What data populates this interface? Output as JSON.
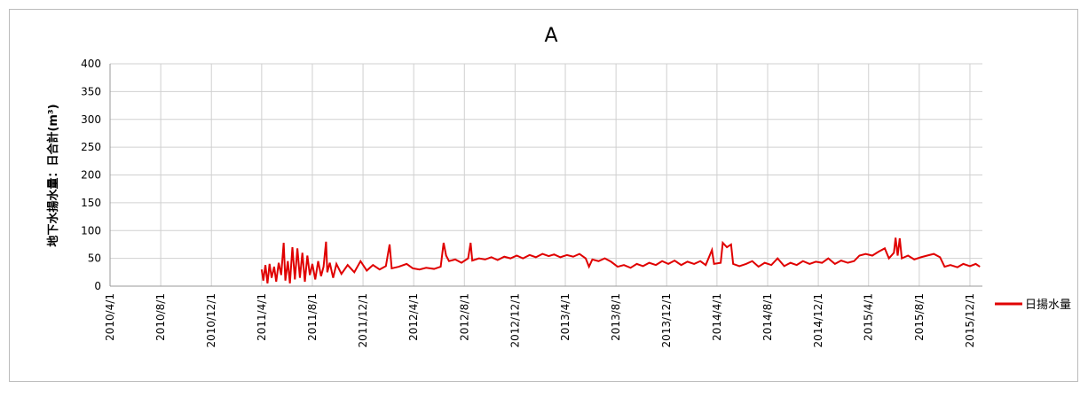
{
  "chart_data": {
    "type": "line",
    "title": "A",
    "y_label": "地下水揚水量：日合計(m³)",
    "xlim": [
      "2010/4/1",
      "2015/12/31"
    ],
    "xticks": [
      "2010/4/1",
      "2010/8/1",
      "2010/12/1",
      "2011/4/1",
      "2011/8/1",
      "2011/12/1",
      "2012/4/1",
      "2012/8/1",
      "2012/12/1",
      "2013/4/1",
      "2013/8/1",
      "2013/12/1",
      "2014/4/1",
      "2014/8/1",
      "2014/12/1",
      "2015/4/1",
      "2015/8/1",
      "2015/12/1"
    ],
    "ylim": [
      0,
      400
    ],
    "yticks": [
      0,
      50,
      100,
      150,
      200,
      250,
      300,
      350,
      400
    ],
    "grid": true,
    "legend": "right",
    "x": [
      "2011/4/1",
      "2011/4/5",
      "2011/4/10",
      "2011/4/15",
      "2011/4/20",
      "2011/4/25",
      "2011/5/1",
      "2011/5/6",
      "2011/5/12",
      "2011/5/18",
      "2011/5/24",
      "2011/5/28",
      "2011/6/3",
      "2011/6/8",
      "2011/6/14",
      "2011/6/20",
      "2011/6/26",
      "2011/7/2",
      "2011/7/8",
      "2011/7/14",
      "2011/7/20",
      "2011/7/26",
      "2011/8/1",
      "2011/8/8",
      "2011/8/15",
      "2011/8/22",
      "2011/8/28",
      "2011/9/3",
      "2011/9/6",
      "2011/9/12",
      "2011/9/20",
      "2011/9/28",
      "2011/10/10",
      "2011/10/25",
      "2011/11/10",
      "2011/11/25",
      "2011/12/10",
      "2011/12/25",
      "2012/1/10",
      "2012/1/25",
      "2012/2/3",
      "2012/2/8",
      "2012/2/25",
      "2012/3/15",
      "2012/3/30",
      "2012/4/15",
      "2012/5/1",
      "2012/5/20",
      "2012/6/5",
      "2012/6/12",
      "2012/6/18",
      "2012/6/25",
      "2012/7/10",
      "2012/7/25",
      "2012/8/10",
      "2012/8/16",
      "2012/8/20",
      "2012/9/5",
      "2012/9/20",
      "2012/10/5",
      "2012/10/20",
      "2012/11/5",
      "2012/11/20",
      "2012/12/5",
      "2012/12/20",
      "2013/1/5",
      "2013/1/20",
      "2013/2/5",
      "2013/2/20",
      "2013/3/5",
      "2013/3/20",
      "2013/4/5",
      "2013/4/20",
      "2013/5/5",
      "2013/5/20",
      "2013/5/28",
      "2013/6/5",
      "2013/6/20",
      "2013/7/5",
      "2013/7/20",
      "2013/8/5",
      "2013/8/20",
      "2013/9/5",
      "2013/9/20",
      "2013/10/5",
      "2013/10/20",
      "2013/11/5",
      "2013/11/20",
      "2013/12/5",
      "2013/12/20",
      "2014/1/5",
      "2014/1/20",
      "2014/2/5",
      "2014/2/20",
      "2014/3/5",
      "2014/3/20",
      "2014/3/25",
      "2014/4/10",
      "2014/4/15",
      "2014/4/25",
      "2014/5/5",
      "2014/5/10",
      "2014/5/25",
      "2014/6/10",
      "2014/6/25",
      "2014/7/10",
      "2014/7/25",
      "2014/8/10",
      "2014/8/25",
      "2014/9/10",
      "2014/9/25",
      "2014/10/10",
      "2014/10/25",
      "2014/11/10",
      "2014/11/25",
      "2014/12/10",
      "2014/12/25",
      "2015/1/10",
      "2015/1/25",
      "2015/2/10",
      "2015/2/25",
      "2015/3/10",
      "2015/3/25",
      "2015/4/10",
      "2015/4/25",
      "2015/5/10",
      "2015/5/20",
      "2015/6/1",
      "2015/6/5",
      "2015/6/10",
      "2015/6/15",
      "2015/6/20",
      "2015/7/5",
      "2015/7/20",
      "2015/8/5",
      "2015/8/20",
      "2015/9/5",
      "2015/9/20",
      "2015/10/1",
      "2015/10/15",
      "2015/11/1",
      "2015/11/15",
      "2015/12/1",
      "2015/12/15",
      "2015/12/25"
    ],
    "series": [
      {
        "name": "日揚水量",
        "color": "#e00000",
        "values": [
          30,
          10,
          38,
          5,
          40,
          15,
          35,
          8,
          42,
          20,
          78,
          10,
          45,
          5,
          70,
          12,
          68,
          15,
          60,
          8,
          55,
          20,
          40,
          12,
          45,
          18,
          35,
          80,
          25,
          42,
          15,
          40,
          22,
          38,
          25,
          45,
          28,
          38,
          30,
          36,
          75,
          32,
          35,
          40,
          32,
          30,
          33,
          31,
          35,
          78,
          55,
          45,
          48,
          42,
          50,
          78,
          46,
          50,
          48,
          52,
          47,
          53,
          50,
          55,
          50,
          56,
          52,
          58,
          54,
          57,
          52,
          56,
          53,
          58,
          50,
          35,
          48,
          45,
          50,
          44,
          35,
          38,
          33,
          40,
          36,
          42,
          38,
          45,
          40,
          46,
          38,
          44,
          40,
          45,
          38,
          65,
          40,
          42,
          78,
          70,
          75,
          40,
          36,
          40,
          45,
          35,
          42,
          38,
          50,
          36,
          42,
          38,
          45,
          40,
          44,
          42,
          50,
          40,
          46,
          42,
          45,
          55,
          58,
          55,
          62,
          68,
          50,
          60,
          87,
          55,
          86,
          50,
          55,
          48,
          52,
          55,
          58,
          52,
          35,
          38,
          34,
          40,
          36,
          40,
          35
        ]
      }
    ]
  }
}
